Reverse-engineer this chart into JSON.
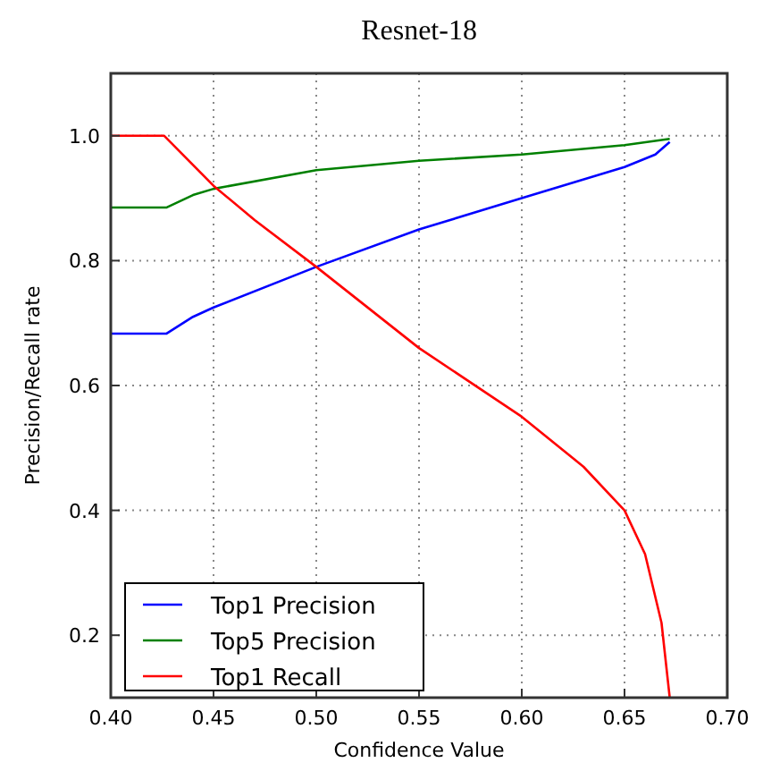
{
  "chart_data": {
    "type": "line",
    "title": "Resnet-18",
    "xlabel": "Confidence Value",
    "ylabel": "Precision/Recall rate",
    "xlim": [
      0.4,
      0.7
    ],
    "ylim": [
      0.1,
      1.1
    ],
    "xticks": [
      {
        "value": 0.4,
        "label": "0.40"
      },
      {
        "value": 0.45,
        "label": "0.45"
      },
      {
        "value": 0.5,
        "label": "0.50"
      },
      {
        "value": 0.55,
        "label": "0.55"
      },
      {
        "value": 0.6,
        "label": "0.60"
      },
      {
        "value": 0.65,
        "label": "0.65"
      },
      {
        "value": 0.7,
        "label": "0.70"
      }
    ],
    "yticks": [
      {
        "value": 0.2,
        "label": "0.2"
      },
      {
        "value": 0.4,
        "label": "0.4"
      },
      {
        "value": 0.6,
        "label": "0.6"
      },
      {
        "value": 0.8,
        "label": "0.8"
      },
      {
        "value": 1.0,
        "label": "1.0"
      }
    ],
    "grid": true,
    "legend": "bottom left",
    "line_style": "solid",
    "series": [
      {
        "name": "Top1 Precision",
        "color": "#0000ff",
        "x": [
          0.4,
          0.427,
          0.44,
          0.45,
          0.5,
          0.55,
          0.6,
          0.65,
          0.665,
          0.672
        ],
        "values": [
          0.683,
          0.683,
          0.71,
          0.725,
          0.79,
          0.85,
          0.9,
          0.95,
          0.97,
          0.99
        ]
      },
      {
        "name": "Top5 Precision",
        "color": "#008000",
        "x": [
          0.4,
          0.427,
          0.44,
          0.45,
          0.5,
          0.55,
          0.6,
          0.65,
          0.672
        ],
        "values": [
          0.885,
          0.885,
          0.905,
          0.915,
          0.945,
          0.96,
          0.97,
          0.985,
          0.995
        ]
      },
      {
        "name": "Top1 Recall",
        "color": "#ff0000",
        "x": [
          0.4,
          0.426,
          0.45,
          0.47,
          0.5,
          0.55,
          0.6,
          0.63,
          0.65,
          0.66,
          0.668,
          0.672
        ],
        "values": [
          1.0,
          1.0,
          0.92,
          0.865,
          0.79,
          0.66,
          0.55,
          0.47,
          0.4,
          0.33,
          0.22,
          0.1
        ]
      }
    ]
  }
}
